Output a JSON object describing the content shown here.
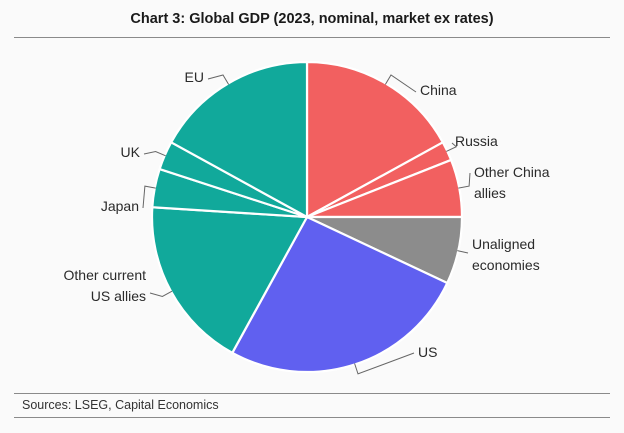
{
  "chart_data": {
    "type": "pie",
    "title": "Chart 3: Global GDP (2023, nominal, market ex rates)",
    "sources": "Sources:  LSEG, Capital Economics",
    "unit": "share of global GDP (%)",
    "slices": [
      {
        "label": "China",
        "lines": [
          "China"
        ],
        "value": 17,
        "color": "#f26060"
      },
      {
        "label": "Russia",
        "lines": [
          "Russia"
        ],
        "value": 2,
        "color": "#f26060"
      },
      {
        "label": "Other China allies",
        "lines": [
          "Other China",
          "allies"
        ],
        "value": 6,
        "color": "#f26060"
      },
      {
        "label": "Unaligned economies",
        "lines": [
          "Unaligned",
          "economies"
        ],
        "value": 7,
        "color": "#8c8c8c"
      },
      {
        "label": "US",
        "lines": [
          "US"
        ],
        "value": 26,
        "color": "#6060f0"
      },
      {
        "label": "Other current US allies",
        "lines": [
          "Other current",
          "US allies"
        ],
        "value": 18,
        "color": "#11a99b"
      },
      {
        "label": "Japan",
        "lines": [
          "Japan"
        ],
        "value": 4,
        "color": "#11a99b"
      },
      {
        "label": "UK",
        "lines": [
          "UK"
        ],
        "value": 3,
        "color": "#11a99b"
      },
      {
        "label": "EU",
        "lines": [
          "EU"
        ],
        "value": 17,
        "color": "#11a99b"
      }
    ]
  }
}
